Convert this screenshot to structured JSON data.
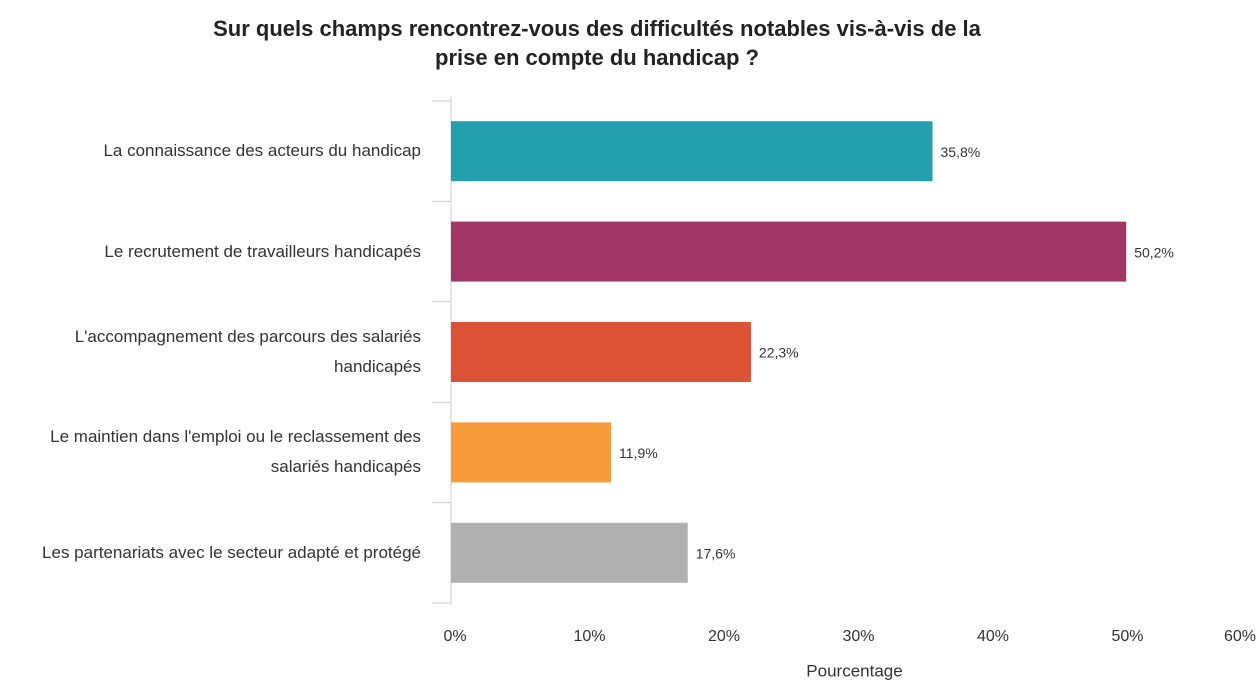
{
  "chart_data": {
    "type": "bar",
    "orientation": "horizontal",
    "title": "Sur quels champs rencontrez-vous des difficultés notables vis-à-vis de la prise en compte du handicap ?",
    "categories": [
      "La connaissance des acteurs du handicap",
      "Le recrutement de travailleurs handicapés",
      "L'accompagnement des parcours des salariés handicapés",
      "Le maintien dans l'emploi ou le reclassement des salariés handicapés",
      "Les partenariats avec le secteur adapté et protégé"
    ],
    "values": [
      35.8,
      50.2,
      22.3,
      11.9,
      17.6
    ],
    "value_labels": [
      "35,8%",
      "50,2%",
      "22,3%",
      "11,9%",
      "17,6%"
    ],
    "colors": [
      "#239fae",
      "#a23766",
      "#de5237",
      "#f79c3a",
      "#b0b0b0"
    ],
    "xlabel": "Pourcentage",
    "xlim": [
      0,
      60
    ],
    "xticks": [
      {
        "value": 0,
        "label": "0%"
      },
      {
        "value": 10,
        "label": "10%"
      },
      {
        "value": 20,
        "label": "20%"
      },
      {
        "value": 30,
        "label": "30%"
      },
      {
        "value": 40,
        "label": "40%"
      },
      {
        "value": 50,
        "label": "50%"
      },
      {
        "value": 60,
        "label": "60%"
      }
    ],
    "grid": false
  }
}
